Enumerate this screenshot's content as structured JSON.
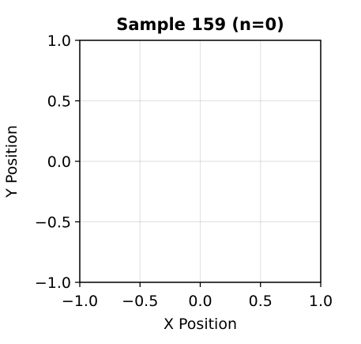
{
  "chart_data": {
    "type": "scatter",
    "title": "Sample 159 (n=0)",
    "xlabel": "X Position",
    "ylabel": "Y Position",
    "xlim": [
      -1.0,
      1.0
    ],
    "ylim": [
      -1.0,
      1.0
    ],
    "xticks": [
      -1.0,
      -0.5,
      0.0,
      0.5,
      1.0
    ],
    "yticks": [
      -1.0,
      -0.5,
      0.0,
      0.5,
      1.0
    ],
    "xtick_labels": [
      "−1.0",
      "−0.5",
      "0.0",
      "0.5",
      "1.0"
    ],
    "ytick_labels": [
      "−1.0",
      "−0.5",
      "0.0",
      "0.5",
      "1.0"
    ],
    "grid": true,
    "series": [
      {
        "x": [],
        "y": []
      }
    ]
  }
}
